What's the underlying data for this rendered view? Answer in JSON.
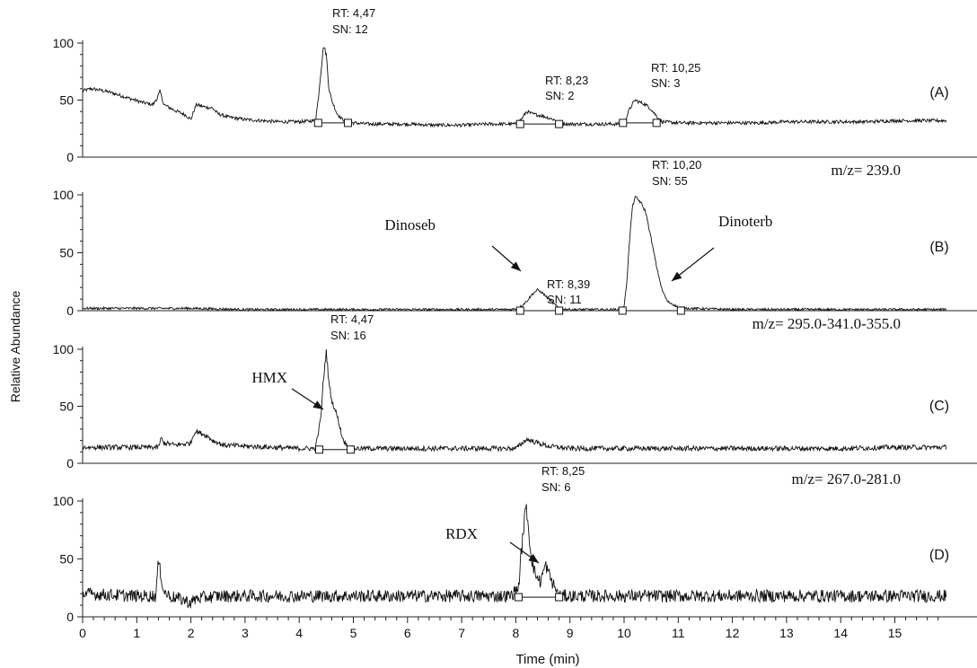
{
  "chart_data": {
    "type": "line",
    "ylabel": "Relative Abundance",
    "xlabel": "Time (min)",
    "xlim": [
      0,
      15.95
    ],
    "ylim": [
      0,
      100
    ],
    "x_ticks": [
      0,
      1,
      2,
      3,
      4,
      5,
      6,
      7,
      8,
      9,
      10,
      11,
      12,
      13,
      14,
      15
    ],
    "x_tick_labels": [
      "0",
      "1",
      "2",
      "3",
      "4",
      "5",
      "6",
      "7",
      "8",
      "9",
      "10",
      "11",
      "12",
      "13",
      "14",
      "15"
    ],
    "y_ticks": [
      0,
      50,
      100
    ],
    "y_tick_labels": [
      "0",
      "50",
      "100"
    ],
    "panels": [
      {
        "label": "(A)",
        "mz": "",
        "series": [
          {
            "x": [
              0,
              0.15,
              0.3,
              0.5,
              0.7,
              0.9,
              1.1,
              1.3,
              1.38,
              1.43,
              1.5,
              1.7,
              1.9,
              2.0,
              2.05,
              2.1,
              2.25,
              2.4,
              2.5,
              2.7,
              3.0,
              3.3,
              3.6,
              4.0,
              4.3,
              4.35,
              4.4,
              4.45,
              4.5,
              4.55,
              4.6,
              4.7,
              4.8,
              4.9,
              5.0,
              5.3,
              6.0,
              6.5,
              7.0,
              7.5,
              8.0,
              8.1,
              8.2,
              8.3,
              8.5,
              8.7,
              8.8,
              9.0,
              9.5,
              9.9,
              10.0,
              10.1,
              10.2,
              10.3,
              10.4,
              10.5,
              10.6,
              10.7,
              11.0,
              11.5,
              12.0,
              12.5,
              13.0,
              13.5,
              14.0,
              14.5,
              15.0,
              15.5,
              15.95
            ],
            "y": [
              58,
              60,
              59,
              57,
              54,
              51,
              48,
              46,
              52,
              58,
              46,
              41,
              37,
              33,
              40,
              46,
              44,
              43,
              38,
              35,
              33,
              32,
              31,
              31,
              32,
              50,
              75,
              98,
              90,
              60,
              50,
              38,
              33,
              31,
              30,
              29,
              29,
              28,
              28,
              29,
              29,
              33,
              40,
              38,
              36,
              33,
              30,
              29,
              29,
              29,
              30,
              42,
              50,
              48,
              46,
              42,
              36,
              31,
              30,
              30,
              30,
              30,
              31,
              31,
              31,
              31,
              32,
              32,
              32
            ],
            "noise": 1.5
          }
        ],
        "annotations": [
          {
            "rt": "RT: 4,47",
            "sn": "SN: 12"
          },
          {
            "rt": "RT: 8,23",
            "sn": "SN: 2"
          },
          {
            "rt": "RT: 10,25",
            "sn": "SN: 3"
          }
        ],
        "baselines": [
          [
            4.35,
            4.9,
            30
          ],
          [
            8.08,
            8.8,
            29
          ],
          [
            9.98,
            10.6,
            30
          ]
        ]
      },
      {
        "label": "(B)",
        "mz": "m/z= 239.0",
        "series": [
          {
            "x": [
              0,
              1,
              2,
              3,
              4,
              5,
              6,
              7,
              7.9,
              8.05,
              8.2,
              8.3,
              8.4,
              8.5,
              8.65,
              8.8,
              9.0,
              9.5,
              9.9,
              10.0,
              10.05,
              10.1,
              10.15,
              10.2,
              10.3,
              10.4,
              10.5,
              10.6,
              10.7,
              10.8,
              11.0,
              11.2,
              12,
              13,
              14,
              15,
              15.95
            ],
            "y": [
              2,
              2,
              2,
              1,
              1,
              1,
              1,
              1,
              1,
              2,
              8,
              14,
              18,
              15,
              8,
              2,
              1,
              1,
              1,
              3,
              25,
              60,
              88,
              98,
              94,
              85,
              62,
              38,
              18,
              8,
              3,
              2,
              1,
              1,
              1,
              1,
              1
            ],
            "noise": 1.0
          }
        ],
        "annotations": [
          {
            "rt": "RT: 8,39",
            "sn": "SN: 11"
          },
          {
            "rt": "RT: 10,20",
            "sn": "SN: 55"
          }
        ],
        "labels": [
          "Dinoseb",
          "Dinoterb"
        ],
        "baselines": [
          [
            8.08,
            8.8,
            0
          ],
          [
            9.97,
            11.05,
            0
          ]
        ]
      },
      {
        "label": "(C)",
        "mz": "m/z= 295.0-341.0-355.0",
        "series": [
          {
            "x": [
              0,
              0.5,
              1.0,
              1.4,
              1.45,
              1.5,
              1.7,
              1.9,
              2.0,
              2.05,
              2.1,
              2.2,
              2.3,
              2.4,
              2.6,
              3.0,
              3.5,
              4.0,
              4.3,
              4.4,
              4.45,
              4.5,
              4.55,
              4.6,
              4.7,
              4.8,
              4.9,
              5.0,
              5.5,
              6,
              7,
              8.0,
              8.1,
              8.2,
              8.4,
              8.6,
              9,
              10,
              11,
              12,
              13,
              14,
              15,
              15.95
            ],
            "y": [
              14,
              14,
              14,
              14,
              22,
              18,
              16,
              17,
              18,
              26,
              28,
              26,
              24,
              20,
              16,
              15,
              14,
              13,
              13,
              40,
              75,
              98,
              70,
              55,
              42,
              22,
              14,
              13,
              13,
              13,
              13,
              13,
              17,
              21,
              18,
              15,
              13,
              13,
              13,
              13,
              13,
              13,
              14,
              14
            ],
            "noise": 2.2
          }
        ],
        "annotations": [
          {
            "rt": "RT: 4,47",
            "sn": "SN: 16"
          }
        ],
        "labels": [
          "HMX"
        ],
        "baselines": [
          [
            4.37,
            4.95,
            12
          ]
        ]
      },
      {
        "label": "(D)",
        "mz": "m/z= 267.0-281.0",
        "series": [
          {
            "x": [
              0,
              0.5,
              1.0,
              1.35,
              1.4,
              1.45,
              1.5,
              1.6,
              1.9,
              2.0,
              2.1,
              2.5,
              3,
              4,
              5,
              6,
              7,
              7.9,
              8.05,
              8.1,
              8.15,
              8.2,
              8.25,
              8.3,
              8.35,
              8.45,
              8.55,
              8.65,
              8.8,
              9,
              10,
              11,
              12,
              13,
              14,
              15,
              15.95
            ],
            "y": [
              20,
              19,
              18,
              18,
              48,
              35,
              22,
              18,
              14,
              12,
              16,
              18,
              18,
              18,
              18,
              18,
              18,
              18,
              25,
              55,
              80,
              95,
              68,
              48,
              38,
              30,
              45,
              32,
              18,
              18,
              18,
              18,
              18,
              18,
              18,
              18,
              18
            ],
            "noise": 5.5
          }
        ],
        "annotations": [
          {
            "rt": "RT: 8,25",
            "sn": "SN: 6"
          }
        ],
        "labels": [
          "RDX"
        ],
        "baselines": [
          [
            8.05,
            8.8,
            17
          ]
        ]
      }
    ]
  }
}
